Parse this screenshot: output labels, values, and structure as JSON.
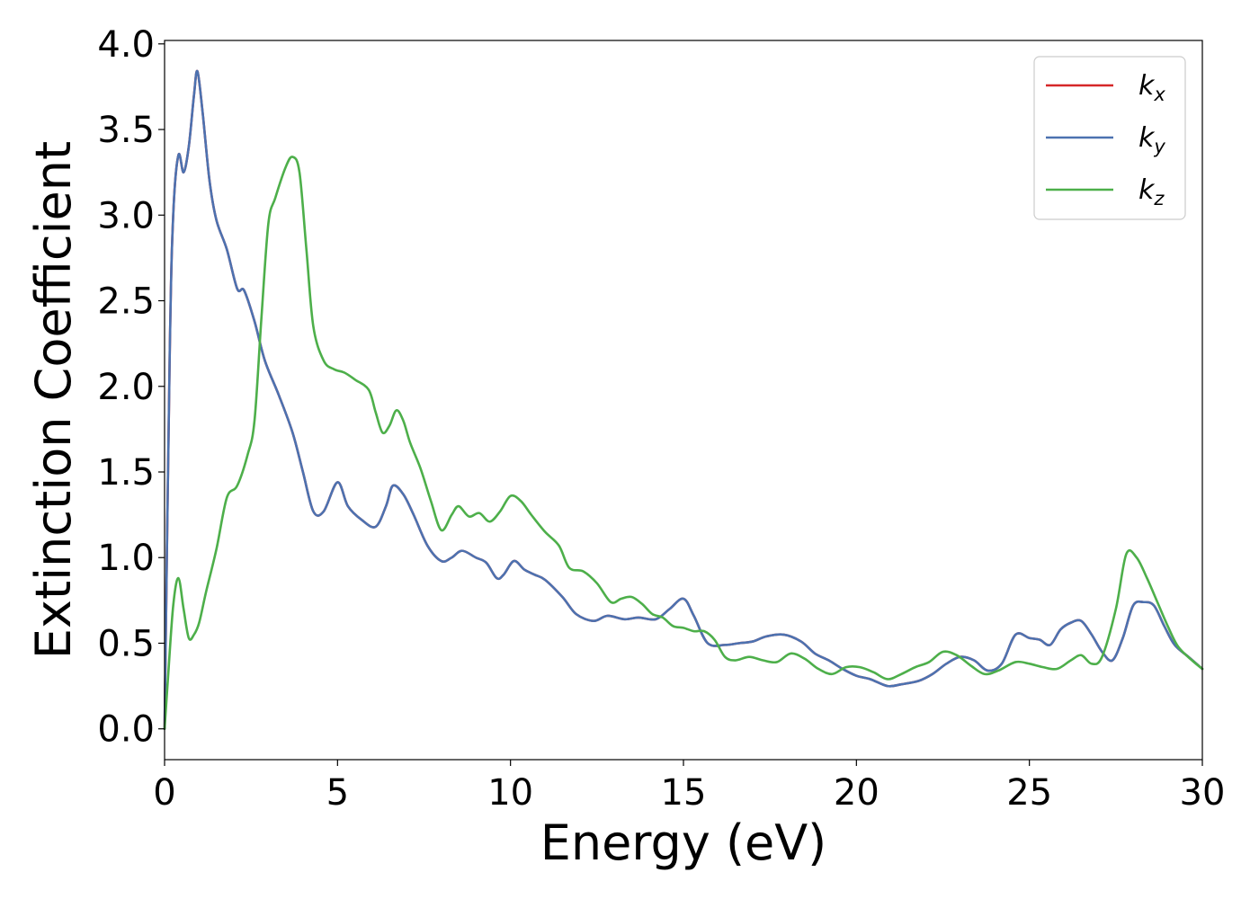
{
  "chart_data": {
    "type": "line",
    "title": "",
    "xlabel": "Energy (eV)",
    "ylabel": "Extinction Coefficient",
    "xlim": [
      0,
      30
    ],
    "ylim": [
      -0.18,
      4.02
    ],
    "xticks": [
      0,
      5,
      10,
      15,
      20,
      25,
      30
    ],
    "yticks": [
      "0.0",
      "0.5",
      "1.0",
      "1.5",
      "2.0",
      "2.5",
      "3.0",
      "3.5",
      "4.0"
    ],
    "grid": false,
    "legend_position": "top-right",
    "series": [
      {
        "name": "k",
        "subscript": "x",
        "color": "#d62728",
        "points": [
          [
            0,
            0.0
          ],
          [
            0.15,
            2.2
          ],
          [
            0.25,
            3.0
          ],
          [
            0.4,
            3.35
          ],
          [
            0.55,
            3.25
          ],
          [
            0.7,
            3.4
          ],
          [
            0.85,
            3.7
          ],
          [
            0.95,
            3.84
          ],
          [
            1.1,
            3.6
          ],
          [
            1.3,
            3.2
          ],
          [
            1.5,
            2.97
          ],
          [
            1.8,
            2.8
          ],
          [
            2.1,
            2.57
          ],
          [
            2.3,
            2.56
          ],
          [
            2.6,
            2.38
          ],
          [
            2.9,
            2.15
          ],
          [
            3.3,
            1.95
          ],
          [
            3.7,
            1.73
          ],
          [
            4.0,
            1.5
          ],
          [
            4.3,
            1.27
          ],
          [
            4.6,
            1.27
          ],
          [
            5.0,
            1.44
          ],
          [
            5.3,
            1.3
          ],
          [
            5.7,
            1.22
          ],
          [
            6.1,
            1.18
          ],
          [
            6.4,
            1.3
          ],
          [
            6.6,
            1.42
          ],
          [
            6.9,
            1.37
          ],
          [
            7.2,
            1.25
          ],
          [
            7.6,
            1.07
          ],
          [
            8.0,
            0.98
          ],
          [
            8.3,
            1.0
          ],
          [
            8.6,
            1.04
          ],
          [
            9.0,
            1.0
          ],
          [
            9.3,
            0.97
          ],
          [
            9.6,
            0.88
          ],
          [
            9.8,
            0.9
          ],
          [
            10.1,
            0.98
          ],
          [
            10.4,
            0.93
          ],
          [
            10.7,
            0.9
          ],
          [
            11.0,
            0.87
          ],
          [
            11.5,
            0.77
          ],
          [
            11.9,
            0.67
          ],
          [
            12.4,
            0.63
          ],
          [
            12.8,
            0.66
          ],
          [
            13.3,
            0.64
          ],
          [
            13.7,
            0.65
          ],
          [
            14.2,
            0.64
          ],
          [
            14.6,
            0.7
          ],
          [
            15.0,
            0.76
          ],
          [
            15.3,
            0.66
          ],
          [
            15.7,
            0.5
          ],
          [
            16.2,
            0.49
          ],
          [
            16.6,
            0.5
          ],
          [
            17.0,
            0.51
          ],
          [
            17.4,
            0.54
          ],
          [
            17.9,
            0.55
          ],
          [
            18.4,
            0.51
          ],
          [
            18.8,
            0.44
          ],
          [
            19.2,
            0.4
          ],
          [
            19.6,
            0.35
          ],
          [
            20.0,
            0.31
          ],
          [
            20.4,
            0.29
          ],
          [
            20.9,
            0.25
          ],
          [
            21.3,
            0.26
          ],
          [
            21.8,
            0.28
          ],
          [
            22.2,
            0.32
          ],
          [
            22.6,
            0.38
          ],
          [
            23.0,
            0.42
          ],
          [
            23.4,
            0.4
          ],
          [
            23.8,
            0.34
          ],
          [
            24.2,
            0.38
          ],
          [
            24.6,
            0.55
          ],
          [
            25.0,
            0.53
          ],
          [
            25.3,
            0.52
          ],
          [
            25.6,
            0.49
          ],
          [
            25.9,
            0.58
          ],
          [
            26.2,
            0.62
          ],
          [
            26.5,
            0.63
          ],
          [
            26.8,
            0.55
          ],
          [
            27.1,
            0.45
          ],
          [
            27.4,
            0.4
          ],
          [
            27.7,
            0.53
          ],
          [
            28.0,
            0.72
          ],
          [
            28.3,
            0.74
          ],
          [
            28.6,
            0.72
          ],
          [
            28.9,
            0.6
          ],
          [
            29.2,
            0.49
          ],
          [
            29.6,
            0.42
          ],
          [
            30.0,
            0.35
          ]
        ]
      },
      {
        "name": "k",
        "subscript": "y",
        "color": "#4c72b0",
        "points": [
          [
            0,
            0.0
          ],
          [
            0.15,
            2.2
          ],
          [
            0.25,
            3.0
          ],
          [
            0.4,
            3.35
          ],
          [
            0.55,
            3.25
          ],
          [
            0.7,
            3.4
          ],
          [
            0.85,
            3.7
          ],
          [
            0.95,
            3.84
          ],
          [
            1.1,
            3.6
          ],
          [
            1.3,
            3.2
          ],
          [
            1.5,
            2.97
          ],
          [
            1.8,
            2.8
          ],
          [
            2.1,
            2.57
          ],
          [
            2.3,
            2.56
          ],
          [
            2.6,
            2.38
          ],
          [
            2.9,
            2.15
          ],
          [
            3.3,
            1.95
          ],
          [
            3.7,
            1.73
          ],
          [
            4.0,
            1.5
          ],
          [
            4.3,
            1.27
          ],
          [
            4.6,
            1.27
          ],
          [
            5.0,
            1.44
          ],
          [
            5.3,
            1.3
          ],
          [
            5.7,
            1.22
          ],
          [
            6.1,
            1.18
          ],
          [
            6.4,
            1.3
          ],
          [
            6.6,
            1.42
          ],
          [
            6.9,
            1.37
          ],
          [
            7.2,
            1.25
          ],
          [
            7.6,
            1.07
          ],
          [
            8.0,
            0.98
          ],
          [
            8.3,
            1.0
          ],
          [
            8.6,
            1.04
          ],
          [
            9.0,
            1.0
          ],
          [
            9.3,
            0.97
          ],
          [
            9.6,
            0.88
          ],
          [
            9.8,
            0.9
          ],
          [
            10.1,
            0.98
          ],
          [
            10.4,
            0.93
          ],
          [
            10.7,
            0.9
          ],
          [
            11.0,
            0.87
          ],
          [
            11.5,
            0.77
          ],
          [
            11.9,
            0.67
          ],
          [
            12.4,
            0.63
          ],
          [
            12.8,
            0.66
          ],
          [
            13.3,
            0.64
          ],
          [
            13.7,
            0.65
          ],
          [
            14.2,
            0.64
          ],
          [
            14.6,
            0.7
          ],
          [
            15.0,
            0.76
          ],
          [
            15.3,
            0.66
          ],
          [
            15.7,
            0.5
          ],
          [
            16.2,
            0.49
          ],
          [
            16.6,
            0.5
          ],
          [
            17.0,
            0.51
          ],
          [
            17.4,
            0.54
          ],
          [
            17.9,
            0.55
          ],
          [
            18.4,
            0.51
          ],
          [
            18.8,
            0.44
          ],
          [
            19.2,
            0.4
          ],
          [
            19.6,
            0.35
          ],
          [
            20.0,
            0.31
          ],
          [
            20.4,
            0.29
          ],
          [
            20.9,
            0.25
          ],
          [
            21.3,
            0.26
          ],
          [
            21.8,
            0.28
          ],
          [
            22.2,
            0.32
          ],
          [
            22.6,
            0.38
          ],
          [
            23.0,
            0.42
          ],
          [
            23.4,
            0.4
          ],
          [
            23.8,
            0.34
          ],
          [
            24.2,
            0.38
          ],
          [
            24.6,
            0.55
          ],
          [
            25.0,
            0.53
          ],
          [
            25.3,
            0.52
          ],
          [
            25.6,
            0.49
          ],
          [
            25.9,
            0.58
          ],
          [
            26.2,
            0.62
          ],
          [
            26.5,
            0.63
          ],
          [
            26.8,
            0.55
          ],
          [
            27.1,
            0.45
          ],
          [
            27.4,
            0.4
          ],
          [
            27.7,
            0.53
          ],
          [
            28.0,
            0.72
          ],
          [
            28.3,
            0.74
          ],
          [
            28.6,
            0.72
          ],
          [
            28.9,
            0.6
          ],
          [
            29.2,
            0.49
          ],
          [
            29.6,
            0.42
          ],
          [
            30.0,
            0.35
          ]
        ]
      },
      {
        "name": "k",
        "subscript": "z",
        "color": "#4daf4a",
        "points": [
          [
            0,
            0.0
          ],
          [
            0.1,
            0.3
          ],
          [
            0.25,
            0.72
          ],
          [
            0.4,
            0.88
          ],
          [
            0.55,
            0.7
          ],
          [
            0.7,
            0.53
          ],
          [
            0.85,
            0.55
          ],
          [
            1.0,
            0.62
          ],
          [
            1.2,
            0.8
          ],
          [
            1.5,
            1.05
          ],
          [
            1.8,
            1.35
          ],
          [
            2.1,
            1.42
          ],
          [
            2.4,
            1.6
          ],
          [
            2.6,
            1.8
          ],
          [
            2.8,
            2.4
          ],
          [
            3.0,
            2.95
          ],
          [
            3.2,
            3.1
          ],
          [
            3.5,
            3.28
          ],
          [
            3.7,
            3.34
          ],
          [
            3.9,
            3.25
          ],
          [
            4.1,
            2.8
          ],
          [
            4.3,
            2.35
          ],
          [
            4.6,
            2.15
          ],
          [
            4.9,
            2.1
          ],
          [
            5.2,
            2.08
          ],
          [
            5.5,
            2.04
          ],
          [
            5.9,
            1.98
          ],
          [
            6.1,
            1.85
          ],
          [
            6.3,
            1.73
          ],
          [
            6.5,
            1.77
          ],
          [
            6.7,
            1.86
          ],
          [
            6.9,
            1.8
          ],
          [
            7.1,
            1.67
          ],
          [
            7.4,
            1.52
          ],
          [
            7.7,
            1.33
          ],
          [
            8.0,
            1.16
          ],
          [
            8.3,
            1.25
          ],
          [
            8.5,
            1.3
          ],
          [
            8.8,
            1.24
          ],
          [
            9.1,
            1.26
          ],
          [
            9.4,
            1.21
          ],
          [
            9.7,
            1.27
          ],
          [
            10.0,
            1.36
          ],
          [
            10.3,
            1.33
          ],
          [
            10.6,
            1.25
          ],
          [
            11.0,
            1.15
          ],
          [
            11.4,
            1.07
          ],
          [
            11.7,
            0.94
          ],
          [
            12.1,
            0.92
          ],
          [
            12.5,
            0.85
          ],
          [
            12.9,
            0.74
          ],
          [
            13.2,
            0.76
          ],
          [
            13.5,
            0.77
          ],
          [
            13.8,
            0.73
          ],
          [
            14.1,
            0.67
          ],
          [
            14.4,
            0.65
          ],
          [
            14.7,
            0.6
          ],
          [
            15.0,
            0.59
          ],
          [
            15.3,
            0.57
          ],
          [
            15.6,
            0.57
          ],
          [
            15.9,
            0.52
          ],
          [
            16.2,
            0.42
          ],
          [
            16.5,
            0.4
          ],
          [
            16.9,
            0.42
          ],
          [
            17.3,
            0.4
          ],
          [
            17.7,
            0.39
          ],
          [
            18.1,
            0.44
          ],
          [
            18.5,
            0.41
          ],
          [
            18.9,
            0.35
          ],
          [
            19.3,
            0.32
          ],
          [
            19.7,
            0.36
          ],
          [
            20.1,
            0.36
          ],
          [
            20.5,
            0.33
          ],
          [
            20.9,
            0.29
          ],
          [
            21.3,
            0.32
          ],
          [
            21.7,
            0.36
          ],
          [
            22.1,
            0.39
          ],
          [
            22.5,
            0.45
          ],
          [
            22.9,
            0.43
          ],
          [
            23.3,
            0.37
          ],
          [
            23.7,
            0.32
          ],
          [
            24.1,
            0.34
          ],
          [
            24.6,
            0.39
          ],
          [
            25.0,
            0.38
          ],
          [
            25.4,
            0.36
          ],
          [
            25.8,
            0.35
          ],
          [
            26.2,
            0.4
          ],
          [
            26.5,
            0.43
          ],
          [
            26.8,
            0.38
          ],
          [
            27.1,
            0.42
          ],
          [
            27.5,
            0.7
          ],
          [
            27.8,
            1.02
          ],
          [
            28.1,
            1.0
          ],
          [
            28.4,
            0.88
          ],
          [
            28.7,
            0.74
          ],
          [
            29.0,
            0.6
          ],
          [
            29.3,
            0.48
          ],
          [
            29.7,
            0.4
          ],
          [
            30.0,
            0.35
          ]
        ]
      }
    ]
  }
}
